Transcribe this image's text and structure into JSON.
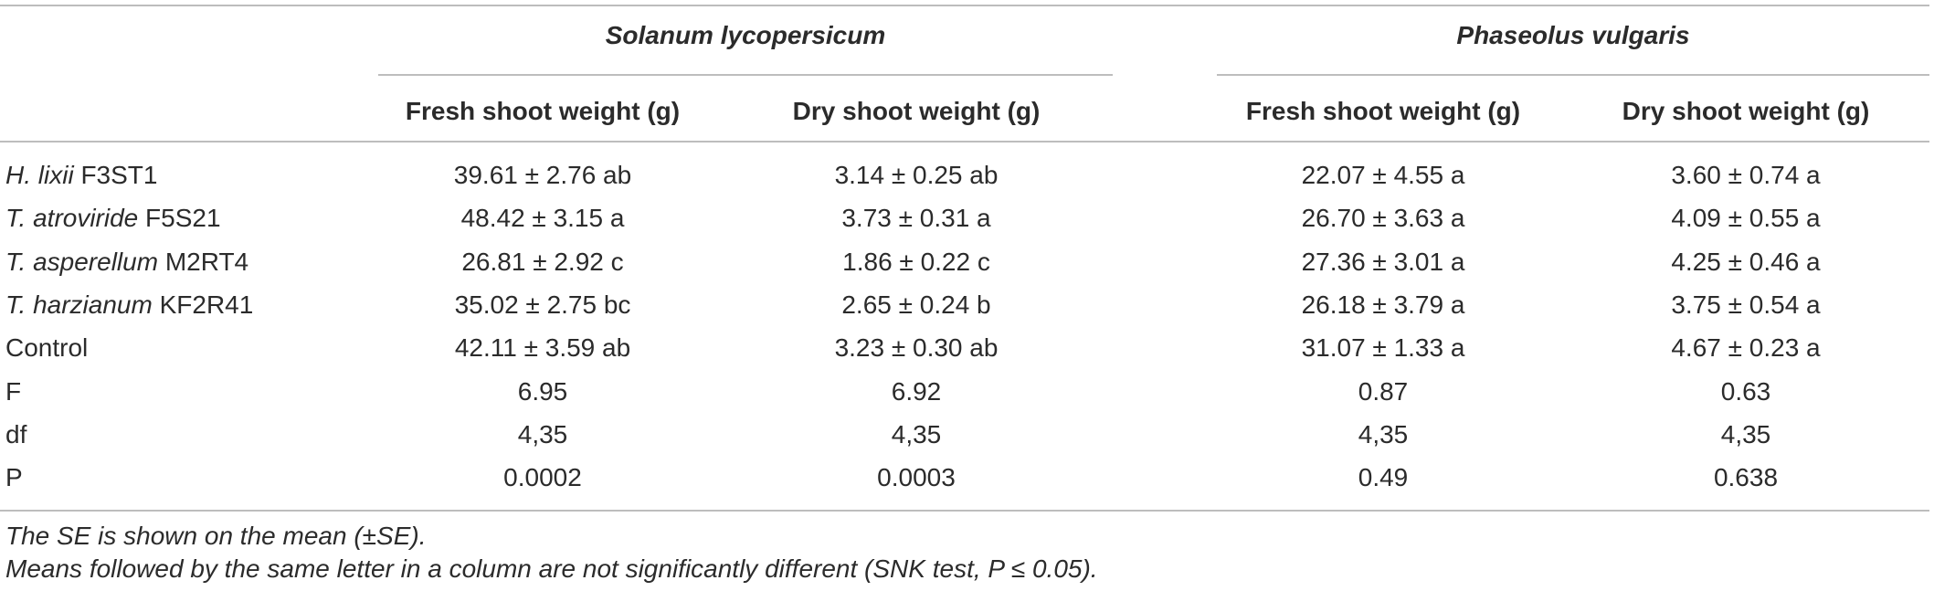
{
  "groups": {
    "solanum": "Solanum lycopersicum",
    "phaseolus": "Phaseolus vulgaris"
  },
  "columns": {
    "sol_fresh": "Fresh shoot weight (g)",
    "sol_dry": "Dry shoot weight (g)",
    "pha_fresh": "Fresh shoot weight (g)",
    "pha_dry": "Dry shoot weight (g)"
  },
  "rows": [
    {
      "species": "H. lixii",
      "strain": " F3ST1",
      "sol_fresh": "39.61 ± 2.76 ab",
      "sol_dry": "3.14 ± 0.25 ab",
      "pha_fresh": "22.07 ± 4.55 a",
      "pha_dry": "3.60 ± 0.74 a"
    },
    {
      "species": "T. atroviride",
      "strain": " F5S21",
      "sol_fresh": "48.42 ± 3.15 a",
      "sol_dry": "3.73 ± 0.31 a",
      "pha_fresh": "26.70 ± 3.63 a",
      "pha_dry": "4.09 ± 0.55 a"
    },
    {
      "species": "T. asperellum",
      "strain": " M2RT4",
      "sol_fresh": "26.81 ± 2.92 c",
      "sol_dry": "1.86 ± 0.22 c",
      "pha_fresh": "27.36 ± 3.01 a",
      "pha_dry": "4.25 ± 0.46 a"
    },
    {
      "species": "T. harzianum",
      "strain": " KF2R41",
      "sol_fresh": "35.02 ± 2.75 bc",
      "sol_dry": "2.65 ± 0.24 b",
      "pha_fresh": "26.18 ± 3.79 a",
      "pha_dry": "3.75 ± 0.54 a"
    },
    {
      "species": "",
      "strain": "Control",
      "sol_fresh": "42.11 ± 3.59 ab",
      "sol_dry": "3.23 ± 0.30 ab",
      "pha_fresh": "31.07 ± 1.33 a",
      "pha_dry": "4.67 ± 0.23 a"
    },
    {
      "species": "",
      "strain": "F",
      "sol_fresh": "6.95",
      "sol_dry": "6.92",
      "pha_fresh": "0.87",
      "pha_dry": "0.63"
    },
    {
      "species": "",
      "strain": "df",
      "sol_fresh": "4,35",
      "sol_dry": "4,35",
      "pha_fresh": "4,35",
      "pha_dry": "4,35"
    },
    {
      "species": "",
      "strain": "P",
      "sol_fresh": "0.0002",
      "sol_dry": "0.0003",
      "pha_fresh": "0.49",
      "pha_dry": "0.638"
    }
  ],
  "footnotes": [
    "The SE is shown on the mean (±SE).",
    "Means followed by the same letter in a column are not significantly different (SNK test, P ≤ 0.05)."
  ]
}
